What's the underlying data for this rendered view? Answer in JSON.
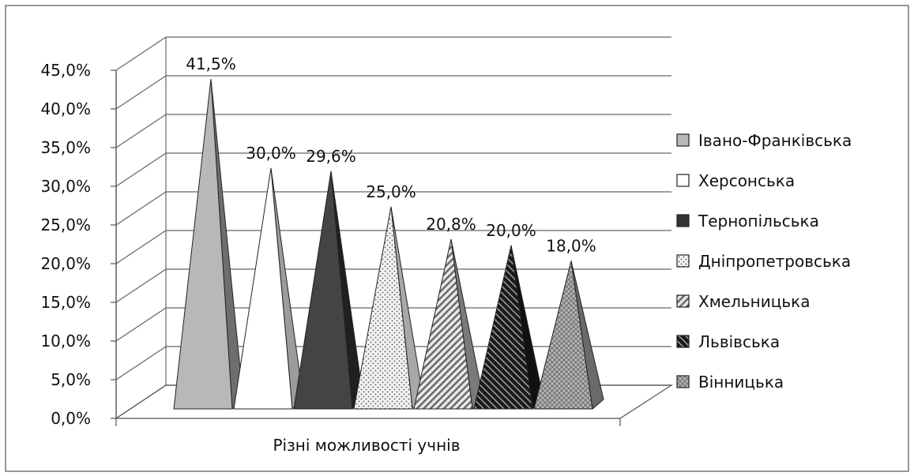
{
  "chart_data": {
    "type": "bar",
    "style": "3d-pyramid",
    "title": "",
    "xlabel": "Різні можливості учнів",
    "ylabel": "",
    "categories": [
      "Різні можливості учнів"
    ],
    "series": [
      {
        "name": "Івано-Франківська",
        "values": [
          41.5
        ],
        "label": "41,5%"
      },
      {
        "name": "Херсонська",
        "values": [
          30.0
        ],
        "label": "30,0%"
      },
      {
        "name": "Тернопільська",
        "values": [
          29.6
        ],
        "label": "29,6%"
      },
      {
        "name": "Дніпропетровська",
        "values": [
          25.0
        ],
        "label": "25,0%"
      },
      {
        "name": "Хмельницька",
        "values": [
          20.8
        ],
        "label": "20,8%"
      },
      {
        "name": "Львівська",
        "values": [
          20.0
        ],
        "label": "20,0%"
      },
      {
        "name": "Вінницька",
        "values": [
          18.0
        ],
        "label": "18,0%"
      }
    ],
    "ylim": [
      0,
      45
    ],
    "yticks": [
      "0,0%",
      "5,0%",
      "10,0%",
      "15,0%",
      "20,0%",
      "25,0%",
      "30,0%",
      "35,0%",
      "40,0%",
      "45,0%"
    ],
    "grid": true,
    "legend": "right",
    "colors": [
      "#b8b8b8",
      "#ffffff",
      "#3a3a3a",
      "#e6e6e6",
      "#c4c4c4",
      "#1e1e1e",
      "#9a9a9a"
    ]
  }
}
